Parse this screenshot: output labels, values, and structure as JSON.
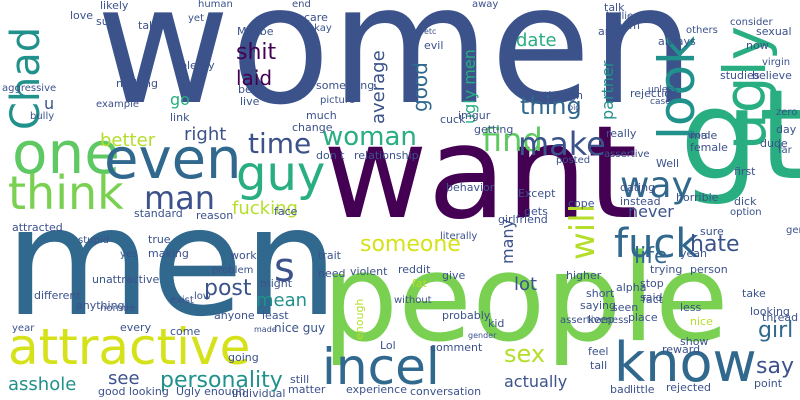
{
  "word_cloud": {
    "palette": {
      "dark_purple": "#440154",
      "indigo": "#3b528b",
      "blue": "#31688e",
      "teal": "#21918c",
      "green_teal": "#28ae80",
      "green": "#5ec962",
      "lime": "#7ad151",
      "yellow_green": "#b5de2b",
      "yellow": "#d5e21a"
    },
    "words": [
      {
        "text": "women",
        "c": "indigo"
      },
      {
        "text": "want",
        "c": "dark_purple"
      },
      {
        "text": "men",
        "c": "blue"
      },
      {
        "text": "people",
        "c": "lime"
      },
      {
        "text": "gt",
        "c": "green_teal"
      },
      {
        "text": "ugly",
        "c": "green_teal"
      },
      {
        "text": "look",
        "c": "teal"
      },
      {
        "text": "one",
        "c": "green"
      },
      {
        "text": "even",
        "c": "blue"
      },
      {
        "text": "think",
        "c": "lime"
      },
      {
        "text": "guy",
        "c": "green_teal"
      },
      {
        "text": "attractive",
        "c": "yellow"
      },
      {
        "text": "incel",
        "c": "blue"
      },
      {
        "text": "know",
        "c": "blue"
      },
      {
        "text": "Chad",
        "c": "teal"
      },
      {
        "text": "fuck",
        "c": "blue"
      },
      {
        "text": "find",
        "c": "green"
      },
      {
        "text": "way",
        "c": "blue"
      },
      {
        "text": "make",
        "c": "indigo"
      },
      {
        "text": "woman",
        "c": "green_teal"
      },
      {
        "text": "time",
        "c": "indigo"
      },
      {
        "text": "man",
        "c": "indigo"
      },
      {
        "text": "will",
        "c": "yellow_green"
      },
      {
        "text": "s",
        "c": "indigo"
      },
      {
        "text": "sex",
        "c": "yellow_green"
      },
      {
        "text": "personality",
        "c": "teal"
      },
      {
        "text": "say",
        "c": "indigo"
      },
      {
        "text": "girl",
        "c": "blue"
      },
      {
        "text": "hate",
        "c": "indigo"
      },
      {
        "text": "life",
        "c": "blue"
      },
      {
        "text": "someone",
        "c": "yellow"
      },
      {
        "text": "post",
        "c": "indigo"
      },
      {
        "text": "shit",
        "c": "dark_purple"
      },
      {
        "text": "laid",
        "c": "dark_purple"
      },
      {
        "text": "thing",
        "c": "blue"
      },
      {
        "text": "good",
        "c": "blue"
      },
      {
        "text": "average",
        "c": "indigo"
      },
      {
        "text": "ugly men",
        "c": "green_teal"
      },
      {
        "text": "date",
        "c": "green_teal"
      },
      {
        "text": "partner",
        "c": "teal"
      },
      {
        "text": "better",
        "c": "yellow_green"
      },
      {
        "text": "right",
        "c": "indigo"
      },
      {
        "text": "fucking",
        "c": "yellow_green"
      },
      {
        "text": "asshole",
        "c": "teal"
      },
      {
        "text": "see",
        "c": "indigo"
      },
      {
        "text": "mean",
        "c": "teal"
      },
      {
        "text": "actually",
        "c": "indigo"
      },
      {
        "text": "lot",
        "c": "indigo"
      },
      {
        "text": "many",
        "c": "indigo"
      },
      {
        "text": "never",
        "c": "indigo"
      },
      {
        "text": "go",
        "c": "green_teal"
      },
      {
        "text": "u",
        "c": "indigo"
      },
      {
        "text": "nice guy",
        "c": "indigo"
      },
      {
        "text": "enough",
        "c": "yellow_green"
      },
      {
        "text": "probably",
        "c": "indigo"
      },
      {
        "text": "Maybe",
        "c": "indigo"
      },
      {
        "text": "talk",
        "c": "indigo"
      },
      {
        "text": "seem",
        "c": "indigo"
      },
      {
        "text": "always",
        "c": "indigo"
      },
      {
        "text": "now",
        "c": "indigo"
      },
      {
        "text": "sexual",
        "c": "indigo"
      },
      {
        "text": "really",
        "c": "indigo"
      },
      {
        "text": "male",
        "c": "indigo"
      },
      {
        "text": "female",
        "c": "indigo"
      },
      {
        "text": "Well",
        "c": "indigo"
      },
      {
        "text": "dude",
        "c": "indigo"
      },
      {
        "text": "day",
        "c": "indigo"
      },
      {
        "text": "first",
        "c": "indigo"
      },
      {
        "text": "fact",
        "c": "indigo"
      },
      {
        "text": "less",
        "c": "indigo"
      },
      {
        "text": "place",
        "c": "indigo"
      },
      {
        "text": "nice",
        "c": "yellow_green"
      },
      {
        "text": "looking",
        "c": "indigo"
      },
      {
        "text": "show",
        "c": "indigo"
      },
      {
        "text": "point",
        "c": "indigo"
      },
      {
        "text": "rejected",
        "c": "indigo"
      },
      {
        "text": "feel",
        "c": "indigo"
      },
      {
        "text": "tall",
        "c": "indigo"
      },
      {
        "text": "alpha",
        "c": "indigo"
      },
      {
        "text": "stop",
        "c": "indigo"
      },
      {
        "text": "said",
        "c": "indigo"
      },
      {
        "text": "seen",
        "c": "indigo"
      },
      {
        "text": "cope",
        "c": "indigo"
      },
      {
        "text": "gets",
        "c": "indigo"
      },
      {
        "text": "give",
        "c": "indigo"
      },
      {
        "text": "reddit",
        "c": "indigo"
      },
      {
        "text": "fat",
        "c": "yellow_green"
      },
      {
        "text": "need",
        "c": "indigo"
      },
      {
        "text": "violent",
        "c": "indigo"
      },
      {
        "text": "trait",
        "c": "indigo"
      },
      {
        "text": "true",
        "c": "indigo"
      },
      {
        "text": "making",
        "c": "indigo"
      },
      {
        "text": "standard",
        "c": "indigo"
      },
      {
        "text": "reason",
        "c": "indigo"
      },
      {
        "text": "face",
        "c": "indigo"
      },
      {
        "text": "work",
        "c": "indigo"
      },
      {
        "text": "might",
        "c": "indigo"
      },
      {
        "text": "least",
        "c": "indigo"
      },
      {
        "text": "come",
        "c": "indigo"
      },
      {
        "text": "every",
        "c": "indigo"
      },
      {
        "text": "anyone",
        "c": "indigo"
      },
      {
        "text": "anything",
        "c": "indigo"
      },
      {
        "text": "different",
        "c": "indigo"
      },
      {
        "text": "unattractive",
        "c": "indigo"
      },
      {
        "text": "good looking",
        "c": "indigo"
      },
      {
        "text": "Ugly enough",
        "c": "indigo"
      },
      {
        "text": "individual",
        "c": "indigo"
      },
      {
        "text": "matter",
        "c": "indigo"
      },
      {
        "text": "still",
        "c": "indigo"
      },
      {
        "text": "experience",
        "c": "indigo"
      },
      {
        "text": "conversation",
        "c": "indigo"
      },
      {
        "text": "comment",
        "c": "indigo"
      },
      {
        "text": "Lol",
        "c": "indigo"
      },
      {
        "text": "going",
        "c": "indigo"
      },
      {
        "text": "bad",
        "c": "indigo"
      },
      {
        "text": "little",
        "c": "indigo"
      },
      {
        "text": "reward",
        "c": "indigo"
      },
      {
        "text": "kid",
        "c": "indigo"
      },
      {
        "text": "keep",
        "c": "indigo"
      },
      {
        "text": "saying",
        "c": "indigo"
      },
      {
        "text": "short",
        "c": "indigo"
      },
      {
        "text": "higher",
        "c": "indigo"
      },
      {
        "text": "take",
        "c": "indigo"
      },
      {
        "text": "trying",
        "c": "indigo"
      },
      {
        "text": "person",
        "c": "indigo"
      },
      {
        "text": "yeah",
        "c": "indigo"
      },
      {
        "text": "sure",
        "c": "indigo"
      },
      {
        "text": "thread",
        "c": "indigo"
      },
      {
        "text": "genuinely",
        "c": "indigo"
      },
      {
        "text": "dick",
        "c": "indigo"
      },
      {
        "text": "option",
        "c": "indigo"
      },
      {
        "text": "far",
        "c": "indigo"
      },
      {
        "text": "horrible",
        "c": "indigo"
      },
      {
        "text": "girlfriend",
        "c": "indigo"
      },
      {
        "text": "Except",
        "c": "indigo"
      },
      {
        "text": "instead",
        "c": "indigo"
      },
      {
        "text": "dating",
        "c": "indigo"
      },
      {
        "text": "posted",
        "c": "indigo"
      },
      {
        "text": "literally",
        "c": "indigo"
      },
      {
        "text": "behavior",
        "c": "indigo"
      },
      {
        "text": "relationship",
        "c": "indigo"
      },
      {
        "text": "don t",
        "c": "indigo"
      },
      {
        "text": "change",
        "c": "indigo"
      },
      {
        "text": "much",
        "c": "indigo"
      },
      {
        "text": "cuck",
        "c": "indigo"
      },
      {
        "text": "getting",
        "c": "indigo"
      },
      {
        "text": "imgur",
        "c": "indigo"
      },
      {
        "text": "though",
        "c": "indigo"
      },
      {
        "text": "rejection",
        "c": "indigo"
      },
      {
        "text": "studies",
        "c": "indigo"
      },
      {
        "text": "believe",
        "c": "indigo"
      },
      {
        "text": "zero",
        "c": "indigo"
      },
      {
        "text": "virgin",
        "c": "indigo"
      },
      {
        "text": "consider",
        "c": "indigo"
      },
      {
        "text": "others",
        "c": "indigo"
      },
      {
        "text": "bullies",
        "c": "indigo"
      },
      {
        "text": "away",
        "c": "indigo"
      },
      {
        "text": "amp",
        "c": "indigo"
      },
      {
        "text": "evil",
        "c": "indigo"
      },
      {
        "text": "etc",
        "c": "indigo"
      },
      {
        "text": "care",
        "c": "indigo"
      },
      {
        "text": "okay",
        "c": "indigo"
      },
      {
        "text": "end",
        "c": "indigo"
      },
      {
        "text": "something",
        "c": "indigo"
      },
      {
        "text": "picture",
        "c": "indigo"
      },
      {
        "text": "human",
        "c": "indigo"
      },
      {
        "text": "yet",
        "c": "indigo"
      },
      {
        "text": "likely",
        "c": "indigo"
      },
      {
        "text": "love",
        "c": "indigo"
      },
      {
        "text": "sub",
        "c": "indigo"
      },
      {
        "text": "talking",
        "c": "indigo"
      },
      {
        "text": "nothing",
        "c": "indigo"
      },
      {
        "text": "example",
        "c": "indigo"
      },
      {
        "text": "plenty",
        "c": "indigo"
      },
      {
        "text": "link",
        "c": "indigo"
      },
      {
        "text": "beta",
        "c": "indigo"
      },
      {
        "text": "live",
        "c": "indigo"
      },
      {
        "text": "aggressive",
        "c": "indigo"
      },
      {
        "text": "bully",
        "c": "indigo"
      },
      {
        "text": "attracted",
        "c": "indigo"
      },
      {
        "text": "stupid",
        "c": "indigo"
      },
      {
        "text": "normie",
        "c": "indigo"
      },
      {
        "text": "yes",
        "c": "indigo"
      },
      {
        "text": "exist",
        "c": "indigo"
      },
      {
        "text": "low",
        "c": "indigo"
      },
      {
        "text": "year",
        "c": "indigo"
      },
      {
        "text": "problem",
        "c": "indigo"
      },
      {
        "text": "made",
        "c": "indigo"
      },
      {
        "text": "without",
        "c": "indigo"
      },
      {
        "text": "assertiveness",
        "c": "indigo"
      },
      {
        "text": "assertive",
        "c": "indigo"
      },
      {
        "text": "unless",
        "c": "indigo"
      },
      {
        "text": "word",
        "c": "indigo"
      },
      {
        "text": "big",
        "c": "indigo"
      },
      {
        "text": "case",
        "c": "indigo"
      },
      {
        "text": "gender",
        "c": "indigo"
      }
    ]
  }
}
